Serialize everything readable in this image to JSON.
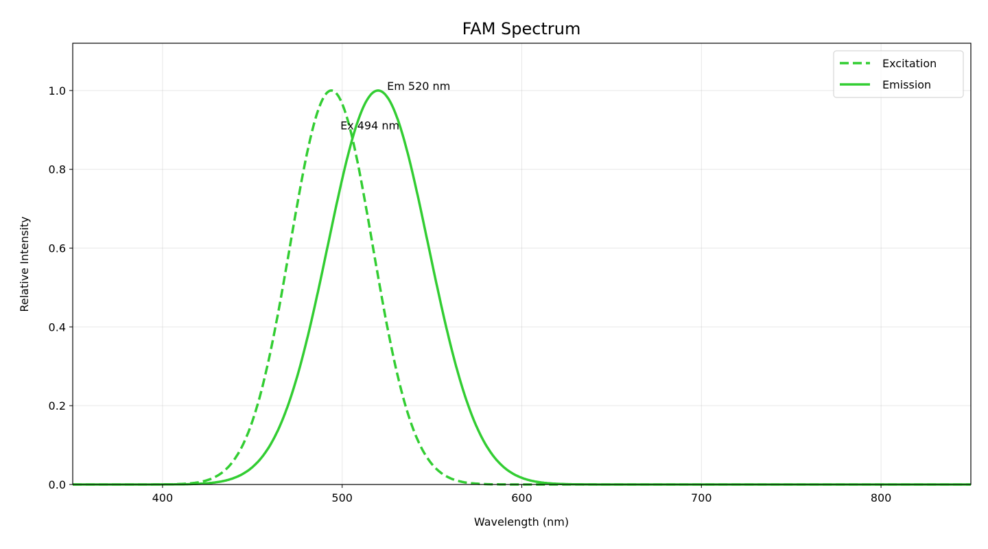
{
  "chart_data": {
    "type": "line",
    "title": "FAM Spectrum",
    "xlabel": "Wavelength (nm)",
    "ylabel": "Relative Intensity",
    "xlim": [
      350,
      850
    ],
    "ylim": [
      0,
      1.12
    ],
    "xticks": [
      "400",
      "500",
      "600",
      "700",
      "800"
    ],
    "yticks": [
      "0.0",
      "0.2",
      "0.4",
      "0.6",
      "0.8",
      "1.0"
    ],
    "grid": true,
    "legend_placement": "top-right",
    "series": [
      {
        "name": "Excitation",
        "style": "dashed",
        "color": "#32CD32",
        "shape": "gaussian",
        "peak_nm": 494,
        "sigma_nm": 23,
        "max": 1.0
      },
      {
        "name": "Emission",
        "style": "solid",
        "color": "#32CD32",
        "shape": "gaussian",
        "peak_nm": 520,
        "sigma_nm": 28,
        "max": 1.0
      }
    ],
    "annotations": [
      {
        "text": "Ex 494 nm",
        "x": 499,
        "y": 0.9
      },
      {
        "text": "Em 520 nm",
        "x": 525,
        "y": 1.0
      }
    ]
  }
}
